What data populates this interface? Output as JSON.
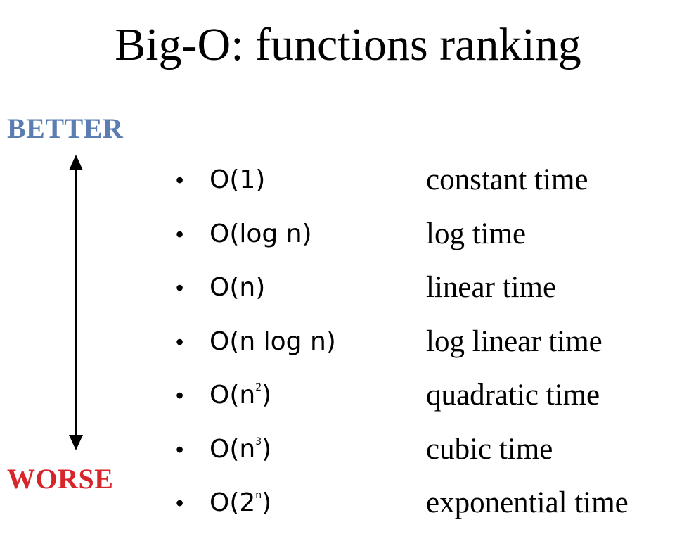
{
  "title": "Big-O: functions ranking",
  "scale": {
    "better_label": "BETTER",
    "worse_label": "WORSE",
    "better_color": "#5B7DB1",
    "worse_color": "#D7262B",
    "arrow_icon": "double-headed-vertical-arrow-icon"
  },
  "rankings": [
    {
      "base": "O(1)",
      "exponent": "",
      "close": "",
      "description": "constant time"
    },
    {
      "base": "O(log n)",
      "exponent": "",
      "close": "",
      "description": "log time"
    },
    {
      "base": "O(n)",
      "exponent": "",
      "close": "",
      "description": "linear time"
    },
    {
      "base": "O(n log n)",
      "exponent": "",
      "close": "",
      "description": "log linear time"
    },
    {
      "base": "O(n",
      "exponent": "2",
      "close": ")",
      "description": "quadratic time"
    },
    {
      "base": "O(n",
      "exponent": "3",
      "close": ")",
      "description": "cubic time"
    },
    {
      "base": "O(2",
      "exponent": "n",
      "close": ")",
      "description": "exponential time"
    }
  ]
}
